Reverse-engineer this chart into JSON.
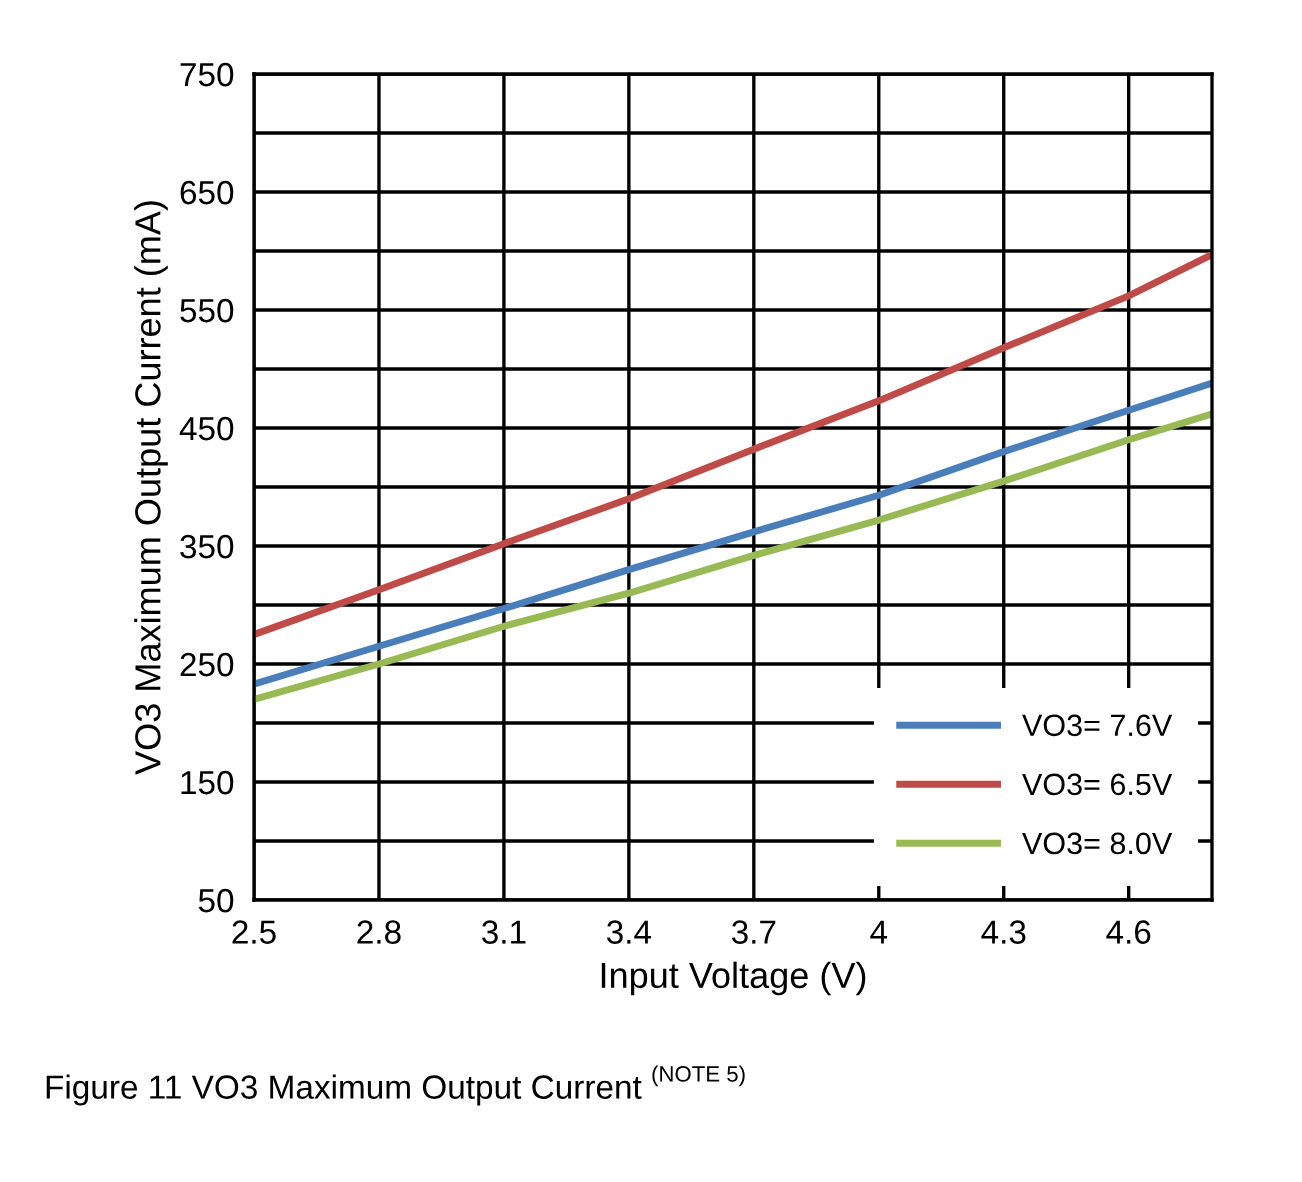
{
  "chart_data": {
    "type": "line",
    "xlabel": "Input Voltage (V)",
    "ylabel": "VO3 Maximum Output Current (mA)",
    "x": [
      2.5,
      2.8,
      3.1,
      3.4,
      3.7,
      4.0,
      4.3,
      4.6,
      4.8
    ],
    "series": [
      {
        "name": "VO3= 7.6V",
        "color": "#4a7ebb",
        "values": [
          233,
          265,
          297,
          330,
          362,
          393,
          430,
          465,
          488
        ]
      },
      {
        "name": "VO3= 6.5V",
        "color": "#be4b48",
        "values": [
          275,
          313,
          352,
          390,
          432,
          473,
          518,
          562,
          597
        ]
      },
      {
        "name": "VO3= 8.0V",
        "color": "#98b954",
        "values": [
          220,
          250,
          282,
          310,
          342,
          372,
          405,
          440,
          462
        ]
      }
    ],
    "xlim": [
      2.5,
      4.8
    ],
    "xticks": [
      2.5,
      2.8,
      3.1,
      3.4,
      3.7,
      {
        "value": 4.0,
        "label": "4"
      },
      4.3,
      4.6
    ],
    "ylim": [
      50,
      750
    ],
    "yticks": [
      50,
      {
        "value": 100,
        "label": null
      },
      150,
      {
        "value": 200,
        "label": null
      },
      250,
      {
        "value": 300,
        "label": null
      },
      350,
      {
        "value": 400,
        "label": null
      },
      450,
      {
        "value": 500,
        "label": null
      },
      550,
      {
        "value": 600,
        "label": null
      },
      650,
      {
        "value": 700,
        "label": null
      },
      750
    ],
    "grid": true,
    "legend": "bottom right",
    "marker": "none",
    "line_style": "solid",
    "annotations": [
      "Figure 11 VO3 Maximum Output Current $^{(NOTE 5)}$"
    ]
  }
}
